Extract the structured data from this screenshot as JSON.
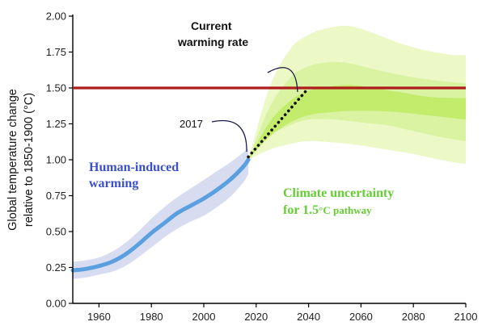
{
  "chart_data": {
    "type": "line",
    "title": "",
    "xlabel": "",
    "ylabel": [
      "Global temperature change",
      "relative to 1850-1900 (°C)"
    ],
    "xlim": [
      1950,
      2100
    ],
    "ylim": [
      0,
      2
    ],
    "x_ticks": [
      "1960",
      "1980",
      "2000",
      "2020",
      "2040",
      "2060",
      "2080",
      "2100"
    ],
    "y_ticks": [
      "0.00",
      "0.25",
      "0.50",
      "0.75",
      "1.00",
      "1.25",
      "1.50",
      "1.75",
      "2.00"
    ],
    "grid": false,
    "threshold": {
      "y": 1.5,
      "color": "#b01c1c"
    },
    "series": [
      {
        "kind": "observed-line",
        "color": "#5aa0e0",
        "points": [
          [
            1950,
            0.23
          ],
          [
            1955,
            0.24
          ],
          [
            1960,
            0.26
          ],
          [
            1965,
            0.29
          ],
          [
            1970,
            0.34
          ],
          [
            1975,
            0.41
          ],
          [
            1980,
            0.49
          ],
          [
            1985,
            0.56
          ],
          [
            1990,
            0.63
          ],
          [
            1995,
            0.68
          ],
          [
            2000,
            0.73
          ],
          [
            2005,
            0.79
          ],
          [
            2010,
            0.86
          ],
          [
            2015,
            0.95
          ],
          [
            2017,
            1.0
          ]
        ]
      },
      {
        "kind": "observed-uncertainty",
        "color": "#b8bfe6",
        "upper": [
          [
            1950,
            0.29
          ],
          [
            1955,
            0.3
          ],
          [
            1960,
            0.32
          ],
          [
            1965,
            0.36
          ],
          [
            1970,
            0.42
          ],
          [
            1975,
            0.5
          ],
          [
            1980,
            0.59
          ],
          [
            1985,
            0.67
          ],
          [
            1990,
            0.74
          ],
          [
            1995,
            0.8
          ],
          [
            2000,
            0.86
          ],
          [
            2005,
            0.92
          ],
          [
            2010,
            0.98
          ],
          [
            2015,
            1.05
          ],
          [
            2017,
            1.08
          ]
        ],
        "lower": [
          [
            1950,
            0.17
          ],
          [
            1955,
            0.18
          ],
          [
            1960,
            0.2
          ],
          [
            1965,
            0.22
          ],
          [
            1970,
            0.26
          ],
          [
            1975,
            0.32
          ],
          [
            1980,
            0.39
          ],
          [
            1985,
            0.46
          ],
          [
            1990,
            0.52
          ],
          [
            1995,
            0.57
          ],
          [
            2000,
            0.61
          ],
          [
            2005,
            0.67
          ],
          [
            2010,
            0.74
          ],
          [
            2015,
            0.84
          ],
          [
            2017,
            0.9
          ]
        ]
      },
      {
        "kind": "projection-dotted",
        "color": "#111111",
        "points": [
          [
            2017,
            1.02
          ],
          [
            2040,
            1.5
          ]
        ]
      }
    ],
    "bands": [
      {
        "name": "outer",
        "color": "#ecf8c6",
        "upper": [
          [
            2017,
            1.0
          ],
          [
            2025,
            1.5
          ],
          [
            2033,
            1.77
          ],
          [
            2040,
            1.87
          ],
          [
            2048,
            1.92
          ],
          [
            2056,
            1.93
          ],
          [
            2065,
            1.88
          ],
          [
            2075,
            1.81
          ],
          [
            2085,
            1.76
          ],
          [
            2095,
            1.73
          ],
          [
            2100,
            1.73
          ]
        ],
        "lower": [
          [
            2017,
            1.0
          ],
          [
            2025,
            1.07
          ],
          [
            2033,
            1.11
          ],
          [
            2040,
            1.13
          ],
          [
            2050,
            1.12
          ],
          [
            2060,
            1.1
          ],
          [
            2070,
            1.07
          ],
          [
            2080,
            1.04
          ],
          [
            2090,
            1.0
          ],
          [
            2100,
            0.97
          ]
        ]
      },
      {
        "name": "middle",
        "color": "#d9f3a3",
        "upper": [
          [
            2017,
            1.0
          ],
          [
            2025,
            1.36
          ],
          [
            2033,
            1.57
          ],
          [
            2040,
            1.65
          ],
          [
            2048,
            1.68
          ],
          [
            2056,
            1.67
          ],
          [
            2065,
            1.63
          ],
          [
            2075,
            1.59
          ],
          [
            2085,
            1.56
          ],
          [
            2095,
            1.54
          ],
          [
            2100,
            1.53
          ]
        ],
        "lower": [
          [
            2017,
            1.0
          ],
          [
            2025,
            1.16
          ],
          [
            2033,
            1.24
          ],
          [
            2040,
            1.28
          ],
          [
            2050,
            1.28
          ],
          [
            2060,
            1.26
          ],
          [
            2070,
            1.24
          ],
          [
            2080,
            1.2
          ],
          [
            2090,
            1.16
          ],
          [
            2100,
            1.13
          ]
        ]
      },
      {
        "name": "inner",
        "color": "#c3ec6c",
        "upper": [
          [
            2017,
            1.0
          ],
          [
            2025,
            1.26
          ],
          [
            2033,
            1.41
          ],
          [
            2040,
            1.48
          ],
          [
            2048,
            1.51
          ],
          [
            2056,
            1.52
          ],
          [
            2065,
            1.5
          ],
          [
            2075,
            1.47
          ],
          [
            2085,
            1.44
          ],
          [
            2095,
            1.43
          ],
          [
            2100,
            1.43
          ]
        ],
        "lower": [
          [
            2017,
            1.0
          ],
          [
            2025,
            1.16
          ],
          [
            2033,
            1.26
          ],
          [
            2040,
            1.31
          ],
          [
            2048,
            1.33
          ],
          [
            2056,
            1.34
          ],
          [
            2065,
            1.34
          ],
          [
            2075,
            1.33
          ],
          [
            2085,
            1.31
          ],
          [
            2095,
            1.29
          ],
          [
            2100,
            1.28
          ]
        ]
      }
    ],
    "annotations": {
      "current_rate": [
        "Current",
        "warming rate"
      ],
      "year": "2017",
      "human": [
        "Human-induced",
        "warming"
      ],
      "climate": [
        "Climate uncertainty",
        "for 1.5",
        "°C",
        " pathway"
      ]
    }
  }
}
